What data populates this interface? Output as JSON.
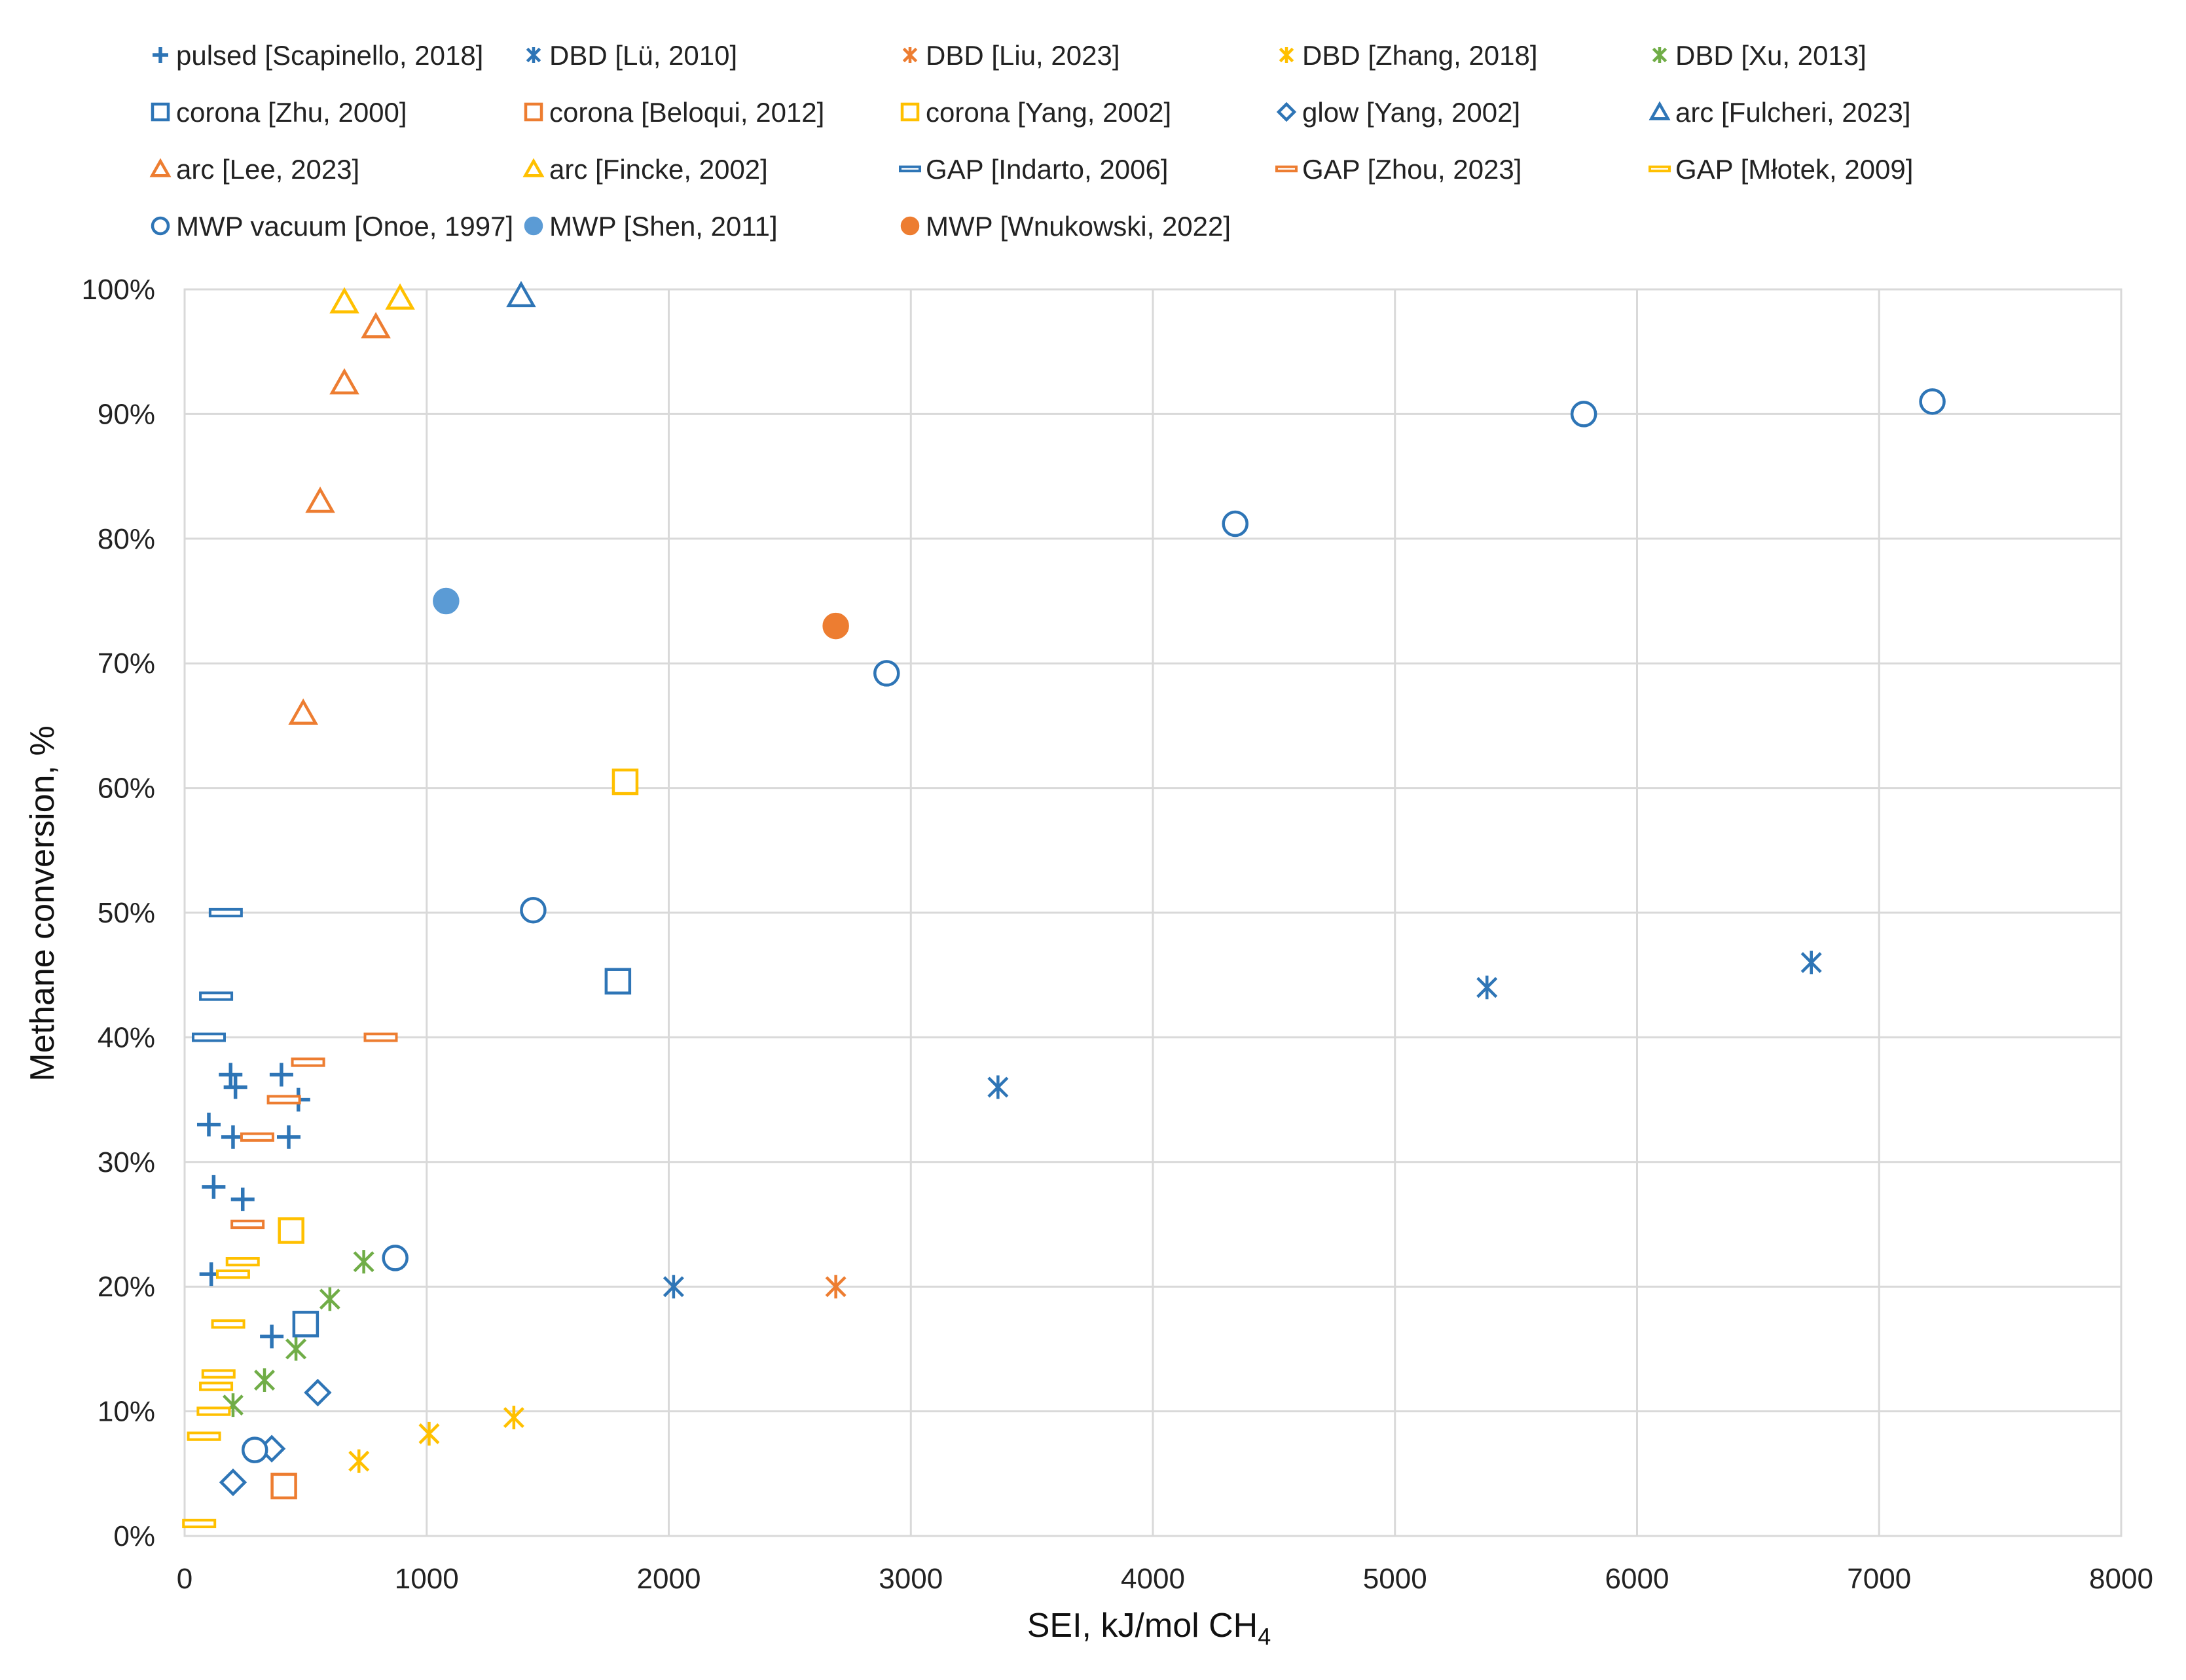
{
  "chart_data": {
    "type": "scatter",
    "title": "",
    "xlabel": "SEI, kJ/mol CH",
    "xlabel_sub": "4",
    "ylabel": "Methane conversion, %",
    "xlim": [
      0,
      8000
    ],
    "ylim": [
      0,
      100
    ],
    "x_ticks": [
      0,
      1000,
      2000,
      3000,
      4000,
      5000,
      6000,
      7000,
      8000
    ],
    "y_ticks": [
      0,
      10,
      20,
      30,
      40,
      50,
      60,
      70,
      80,
      90,
      100
    ],
    "y_tick_labels": [
      "0%",
      "10%",
      "20%",
      "30%",
      "40%",
      "50%",
      "60%",
      "70%",
      "80%",
      "90%",
      "100%"
    ],
    "grid": true,
    "legend_position": "top",
    "series": [
      {
        "name": "pulsed [Scapinello, 2018]",
        "marker": "plus",
        "color": "#2E75B6",
        "filled": false,
        "points": [
          [
            190,
            37
          ],
          [
            210,
            36
          ],
          [
            400,
            37
          ],
          [
            470,
            35
          ],
          [
            100,
            33
          ],
          [
            200,
            32
          ],
          [
            430,
            32
          ],
          [
            120,
            28
          ],
          [
            240,
            27
          ],
          [
            110,
            21
          ],
          [
            360,
            16
          ]
        ]
      },
      {
        "name": "DBD [Lü, 2010]",
        "marker": "asterisk",
        "color": "#2E75B6",
        "filled": false,
        "points": [
          [
            2020,
            20
          ],
          [
            3360,
            36
          ],
          [
            5380,
            44
          ],
          [
            6720,
            46
          ]
        ]
      },
      {
        "name": "DBD [Liu, 2023]",
        "marker": "asterisk",
        "color": "#ED7D31",
        "filled": false,
        "points": [
          [
            2690,
            20
          ]
        ]
      },
      {
        "name": "DBD [Zhang, 2018]",
        "marker": "asterisk",
        "color": "#FFC000",
        "filled": false,
        "points": [
          [
            1360,
            9.5
          ],
          [
            1010,
            8.2
          ],
          [
            720,
            6
          ]
        ]
      },
      {
        "name": "DBD [Xu, 2013]",
        "marker": "asterisk",
        "color": "#70AD47",
        "filled": false,
        "points": [
          [
            740,
            22
          ],
          [
            600,
            19
          ],
          [
            460,
            15
          ],
          [
            330,
            12.5
          ],
          [
            200,
            10.5
          ]
        ]
      },
      {
        "name": "corona [Zhu, 2000]",
        "marker": "square",
        "color": "#2E75B6",
        "filled": false,
        "points": [
          [
            1790,
            44.5
          ],
          [
            500,
            17
          ]
        ]
      },
      {
        "name": "corona [Beloqui, 2012]",
        "marker": "square",
        "color": "#ED7D31",
        "filled": false,
        "points": [
          [
            410,
            4
          ]
        ]
      },
      {
        "name": "corona [Yang, 2002]",
        "marker": "square",
        "color": "#FFC000",
        "filled": false,
        "points": [
          [
            1820,
            60.5
          ],
          [
            440,
            24.5
          ]
        ]
      },
      {
        "name": "glow [Yang, 2002]",
        "marker": "diamond",
        "color": "#2E75B6",
        "filled": false,
        "points": [
          [
            550,
            11.5
          ],
          [
            360,
            7
          ],
          [
            200,
            4.3
          ]
        ]
      },
      {
        "name": "arc [Fulcheri, 2023]",
        "marker": "triangle",
        "color": "#2E75B6",
        "filled": false,
        "points": [
          [
            1390,
            99.5
          ]
        ]
      },
      {
        "name": "arc [Lee, 2023]",
        "marker": "triangle",
        "color": "#ED7D31",
        "filled": false,
        "points": [
          [
            790,
            97
          ],
          [
            660,
            92.5
          ],
          [
            560,
            83
          ],
          [
            490,
            66
          ]
        ]
      },
      {
        "name": "arc [Fincke, 2002]",
        "marker": "triangle",
        "color": "#FFC000",
        "filled": false,
        "points": [
          [
            660,
            99
          ],
          [
            890,
            99.3
          ]
        ]
      },
      {
        "name": "GAP [Indarto, 2006]",
        "marker": "dash",
        "color": "#2E75B6",
        "filled": false,
        "points": [
          [
            170,
            50
          ],
          [
            130,
            43.3
          ],
          [
            100,
            40
          ]
        ]
      },
      {
        "name": "GAP [Zhou, 2023]",
        "marker": "dash",
        "color": "#ED7D31",
        "filled": false,
        "points": [
          [
            810,
            40
          ],
          [
            510,
            38
          ],
          [
            410,
            35
          ],
          [
            300,
            32
          ],
          [
            260,
            25
          ]
        ]
      },
      {
        "name": "GAP [Młotek, 2009]",
        "marker": "dash",
        "color": "#FFC000",
        "filled": false,
        "points": [
          [
            240,
            22
          ],
          [
            200,
            21
          ],
          [
            180,
            17
          ],
          [
            140,
            13
          ],
          [
            130,
            12
          ],
          [
            120,
            10
          ],
          [
            80,
            8
          ],
          [
            60,
            1
          ]
        ]
      },
      {
        "name": "MWP vacuum [Onoe, 1997]",
        "marker": "circle",
        "color": "#2E75B6",
        "filled": false,
        "points": [
          [
            7220,
            91
          ],
          [
            5780,
            90
          ],
          [
            4340,
            81.2
          ],
          [
            2900,
            69.2
          ],
          [
            1440,
            50.2
          ],
          [
            870,
            22.3
          ],
          [
            290,
            6.9
          ]
        ]
      },
      {
        "name": "MWP [Shen, 2011]",
        "marker": "circle",
        "color": "#5B9BD5",
        "filled": true,
        "points": [
          [
            1080,
            75
          ]
        ]
      },
      {
        "name": "MWP [Wnukowski, 2022]",
        "marker": "circle",
        "color": "#ED7D31",
        "filled": true,
        "points": [
          [
            2690,
            73
          ]
        ]
      }
    ]
  }
}
